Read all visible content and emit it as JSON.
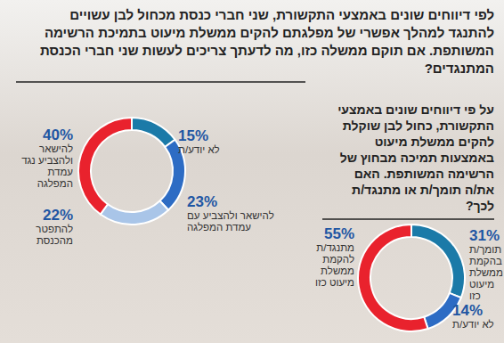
{
  "chart_data": [
    {
      "type": "pie",
      "title": "לפי דיווחים שונים באמצעי התקשורת, שני חברי כנסת מכחול לבן עשויים להתנגד למהלך אפשרי של מפלגתם להקים ממשלת מיעוט בתמיכת הרשימה המשותפת. אם תוקם ממשלה כזו, מה לדעתך צריכים לעשות שני חברי הכנסת המתנגדים?",
      "categories": [
        "לא יודע/ת",
        "להישאר ולהצביע עם עמדת המפלגה",
        "להתפטר מהכנסת",
        "להישאר ולהצביע נגד עמדת המפלגה"
      ],
      "values": [
        15,
        23,
        22,
        40
      ],
      "value_labels": [
        "15%",
        "23%",
        "22%",
        "40%"
      ],
      "colors": [
        "#1b7aa8",
        "#2d6cc4",
        "#a9c5e8",
        "#e9222d"
      ],
      "data_labels": true
    },
    {
      "type": "pie",
      "title": "על פי דיווחים שונים באמצעי התקשורת, כחול לבן שוקלת להקים ממשלת מיעוט באמצעות תמיכה מבחוץ של הרשימה המשותפת. האם את/ה תומך/ת או מתנגד/ת לכך?",
      "categories": [
        "תומך/ת בהקמת ממשלת מיעוט כזו",
        "לא יודע/ת",
        "מתנגד/ת להקמת ממשלת מיעוט כזו"
      ],
      "values": [
        31,
        14,
        55
      ],
      "value_labels": [
        "31%",
        "14%",
        "55%"
      ],
      "colors": [
        "#1b7aa8",
        "#2d6cc4",
        "#e9222d"
      ],
      "data_labels": true
    }
  ]
}
